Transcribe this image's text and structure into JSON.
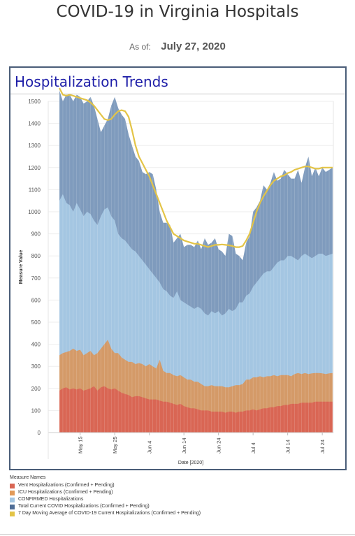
{
  "page": {
    "title": "COVID-19 in Virginia Hospitals",
    "asof_label": "As of:",
    "asof_value": "July 27, 2020",
    "card_title": "Hospitalization Trends"
  },
  "colors": {
    "vent": "#d96654",
    "icu": "#d49a68",
    "confirmed": "#a4c6e2",
    "total": "#7f9bbd",
    "avg": "#e3c447"
  },
  "legend": {
    "title": "Measure Names",
    "items": [
      {
        "label": "Vent Hospitalizations (Confirmed + Pending)",
        "color": "#d96654"
      },
      {
        "label": "ICU Hospitalizations (Confirmed + Pending)",
        "color": "#e29a58"
      },
      {
        "label": "CONFIRMED Hospitalizations",
        "color": "#a4c6e2"
      },
      {
        "label": "Total Current COVID Hospitalizations (Confirmed + Pending)",
        "color": "#4f6d96"
      },
      {
        "label": "7 Day Moving Average of COVID-19 Current Hospitalizations (Confirmed + Pending)",
        "color": "#e3c447"
      }
    ]
  },
  "chart_data": {
    "type": "area",
    "xlabel": "Date [2020]",
    "ylabel": "Measure Value",
    "ylim": [
      0,
      1500
    ],
    "yticks": [
      0,
      100,
      200,
      300,
      400,
      500,
      600,
      700,
      800,
      900,
      1000,
      1100,
      1200,
      1300,
      1400,
      1500
    ],
    "xticks": [
      "May 15",
      "May 25",
      "Jun 4",
      "Jun 14",
      "Jun 24",
      "Jul 4",
      "Jul 14",
      "Jul 24"
    ],
    "grid": true,
    "x": [
      "May 9",
      "May 10",
      "May 11",
      "May 12",
      "May 13",
      "May 14",
      "May 15",
      "May 16",
      "May 17",
      "May 18",
      "May 19",
      "May 20",
      "May 21",
      "May 22",
      "May 23",
      "May 24",
      "May 25",
      "May 26",
      "May 27",
      "May 28",
      "May 29",
      "May 30",
      "May 31",
      "Jun 1",
      "Jun 2",
      "Jun 3",
      "Jun 4",
      "Jun 5",
      "Jun 6",
      "Jun 7",
      "Jun 8",
      "Jun 9",
      "Jun 10",
      "Jun 11",
      "Jun 12",
      "Jun 13",
      "Jun 14",
      "Jun 15",
      "Jun 16",
      "Jun 17",
      "Jun 18",
      "Jun 19",
      "Jun 20",
      "Jun 21",
      "Jun 22",
      "Jun 23",
      "Jun 24",
      "Jun 25",
      "Jun 26",
      "Jun 27",
      "Jun 28",
      "Jun 29",
      "Jun 30",
      "Jul 1",
      "Jul 2",
      "Jul 3",
      "Jul 4",
      "Jul 5",
      "Jul 6",
      "Jul 7",
      "Jul 8",
      "Jul 9",
      "Jul 10",
      "Jul 11",
      "Jul 12",
      "Jul 13",
      "Jul 14",
      "Jul 15",
      "Jul 16",
      "Jul 17",
      "Jul 18",
      "Jul 19",
      "Jul 20",
      "Jul 21",
      "Jul 22",
      "Jul 23",
      "Jul 24",
      "Jul 25",
      "Jul 26",
      "Jul 27"
    ],
    "series": [
      {
        "name": "Total Current COVID Hospitalizations (Confirmed + Pending)",
        "values": [
          1550,
          1500,
          1530,
          1530,
          1500,
          1530,
          1520,
          1490,
          1500,
          1520,
          1480,
          1420,
          1360,
          1390,
          1420,
          1480,
          1520,
          1470,
          1440,
          1420,
          1350,
          1300,
          1250,
          1230,
          1180,
          1170,
          1180,
          1170,
          1100,
          1000,
          950,
          950,
          940,
          860,
          880,
          900,
          840,
          850,
          850,
          840,
          870,
          830,
          880,
          850,
          860,
          880,
          830,
          820,
          800,
          900,
          890,
          810,
          800,
          780,
          860,
          890,
          1000,
          1020,
          1050,
          1120,
          1100,
          1130,
          1180,
          1140,
          1150,
          1190,
          1170,
          1150,
          1150,
          1190,
          1130,
          1200,
          1250,
          1160,
          1200,
          1160,
          1200,
          1180,
          1190,
          1200
        ]
      },
      {
        "name": "CONFIRMED Hospitalizations",
        "values": [
          1050,
          1080,
          1040,
          1030,
          1000,
          1040,
          1010,
          980,
          1000,
          990,
          960,
          940,
          980,
          1010,
          1020,
          980,
          960,
          900,
          880,
          870,
          850,
          830,
          820,
          800,
          780,
          760,
          740,
          720,
          700,
          680,
          650,
          640,
          620,
          610,
          640,
          600,
          590,
          580,
          570,
          560,
          570,
          560,
          540,
          530,
          550,
          540,
          550,
          530,
          540,
          560,
          550,
          560,
          590,
          590,
          620,
          630,
          660,
          680,
          700,
          720,
          730,
          730,
          750,
          770,
          780,
          780,
          800,
          800,
          790,
          780,
          800,
          810,
          800,
          790,
          800,
          810,
          810,
          800,
          805,
          810
        ]
      },
      {
        "name": "ICU Hospitalizations (Confirmed + Pending)",
        "values": [
          350,
          360,
          365,
          370,
          380,
          370,
          375,
          350,
          360,
          370,
          350,
          360,
          380,
          400,
          420,
          380,
          360,
          360,
          340,
          330,
          320,
          320,
          310,
          315,
          310,
          300,
          310,
          300,
          290,
          330,
          280,
          270,
          270,
          260,
          255,
          260,
          250,
          240,
          240,
          230,
          230,
          220,
          210,
          210,
          215,
          210,
          210,
          210,
          205,
          205,
          210,
          215,
          215,
          220,
          240,
          240,
          250,
          250,
          255,
          250,
          255,
          255,
          260,
          255,
          260,
          260,
          260,
          255,
          265,
          270,
          265,
          270,
          265,
          268,
          270,
          270,
          268,
          265,
          268,
          270
        ]
      },
      {
        "name": "Vent Hospitalizations (Confirmed + Pending)",
        "values": [
          190,
          200,
          205,
          195,
          200,
          195,
          200,
          190,
          195,
          200,
          210,
          190,
          205,
          210,
          200,
          195,
          200,
          190,
          180,
          175,
          170,
          160,
          165,
          165,
          160,
          155,
          150,
          150,
          150,
          145,
          140,
          140,
          135,
          130,
          125,
          130,
          120,
          115,
          110,
          110,
          105,
          100,
          100,
          100,
          95,
          95,
          95,
          95,
          90,
          95,
          95,
          90,
          95,
          95,
          100,
          100,
          105,
          100,
          105,
          110,
          110,
          115,
          115,
          120,
          120,
          125,
          125,
          130,
          130,
          130,
          135,
          135,
          135,
          135,
          140,
          140,
          140,
          140,
          140,
          140
        ]
      },
      {
        "name": "7 Day Moving Average of COVID-19 Current Hospitalizations (Confirmed + Pending)",
        "values": [
          1560,
          1530,
          1525,
          1530,
          1525,
          1520,
          1515,
          1510,
          1505,
          1495,
          1480,
          1460,
          1440,
          1420,
          1415,
          1420,
          1440,
          1455,
          1460,
          1455,
          1430,
          1370,
          1300,
          1250,
          1220,
          1190,
          1160,
          1120,
          1080,
          1040,
          1000,
          960,
          930,
          900,
          890,
          880,
          870,
          865,
          860,
          855,
          855,
          850,
          845,
          840,
          845,
          850,
          850,
          852,
          850,
          848,
          845,
          840,
          840,
          845,
          870,
          900,
          950,
          1000,
          1040,
          1070,
          1095,
          1120,
          1140,
          1150,
          1160,
          1165,
          1175,
          1180,
          1190,
          1195,
          1200,
          1205,
          1205,
          1200,
          1195,
          1195,
          1200,
          1200,
          1200,
          1200
        ]
      }
    ]
  }
}
